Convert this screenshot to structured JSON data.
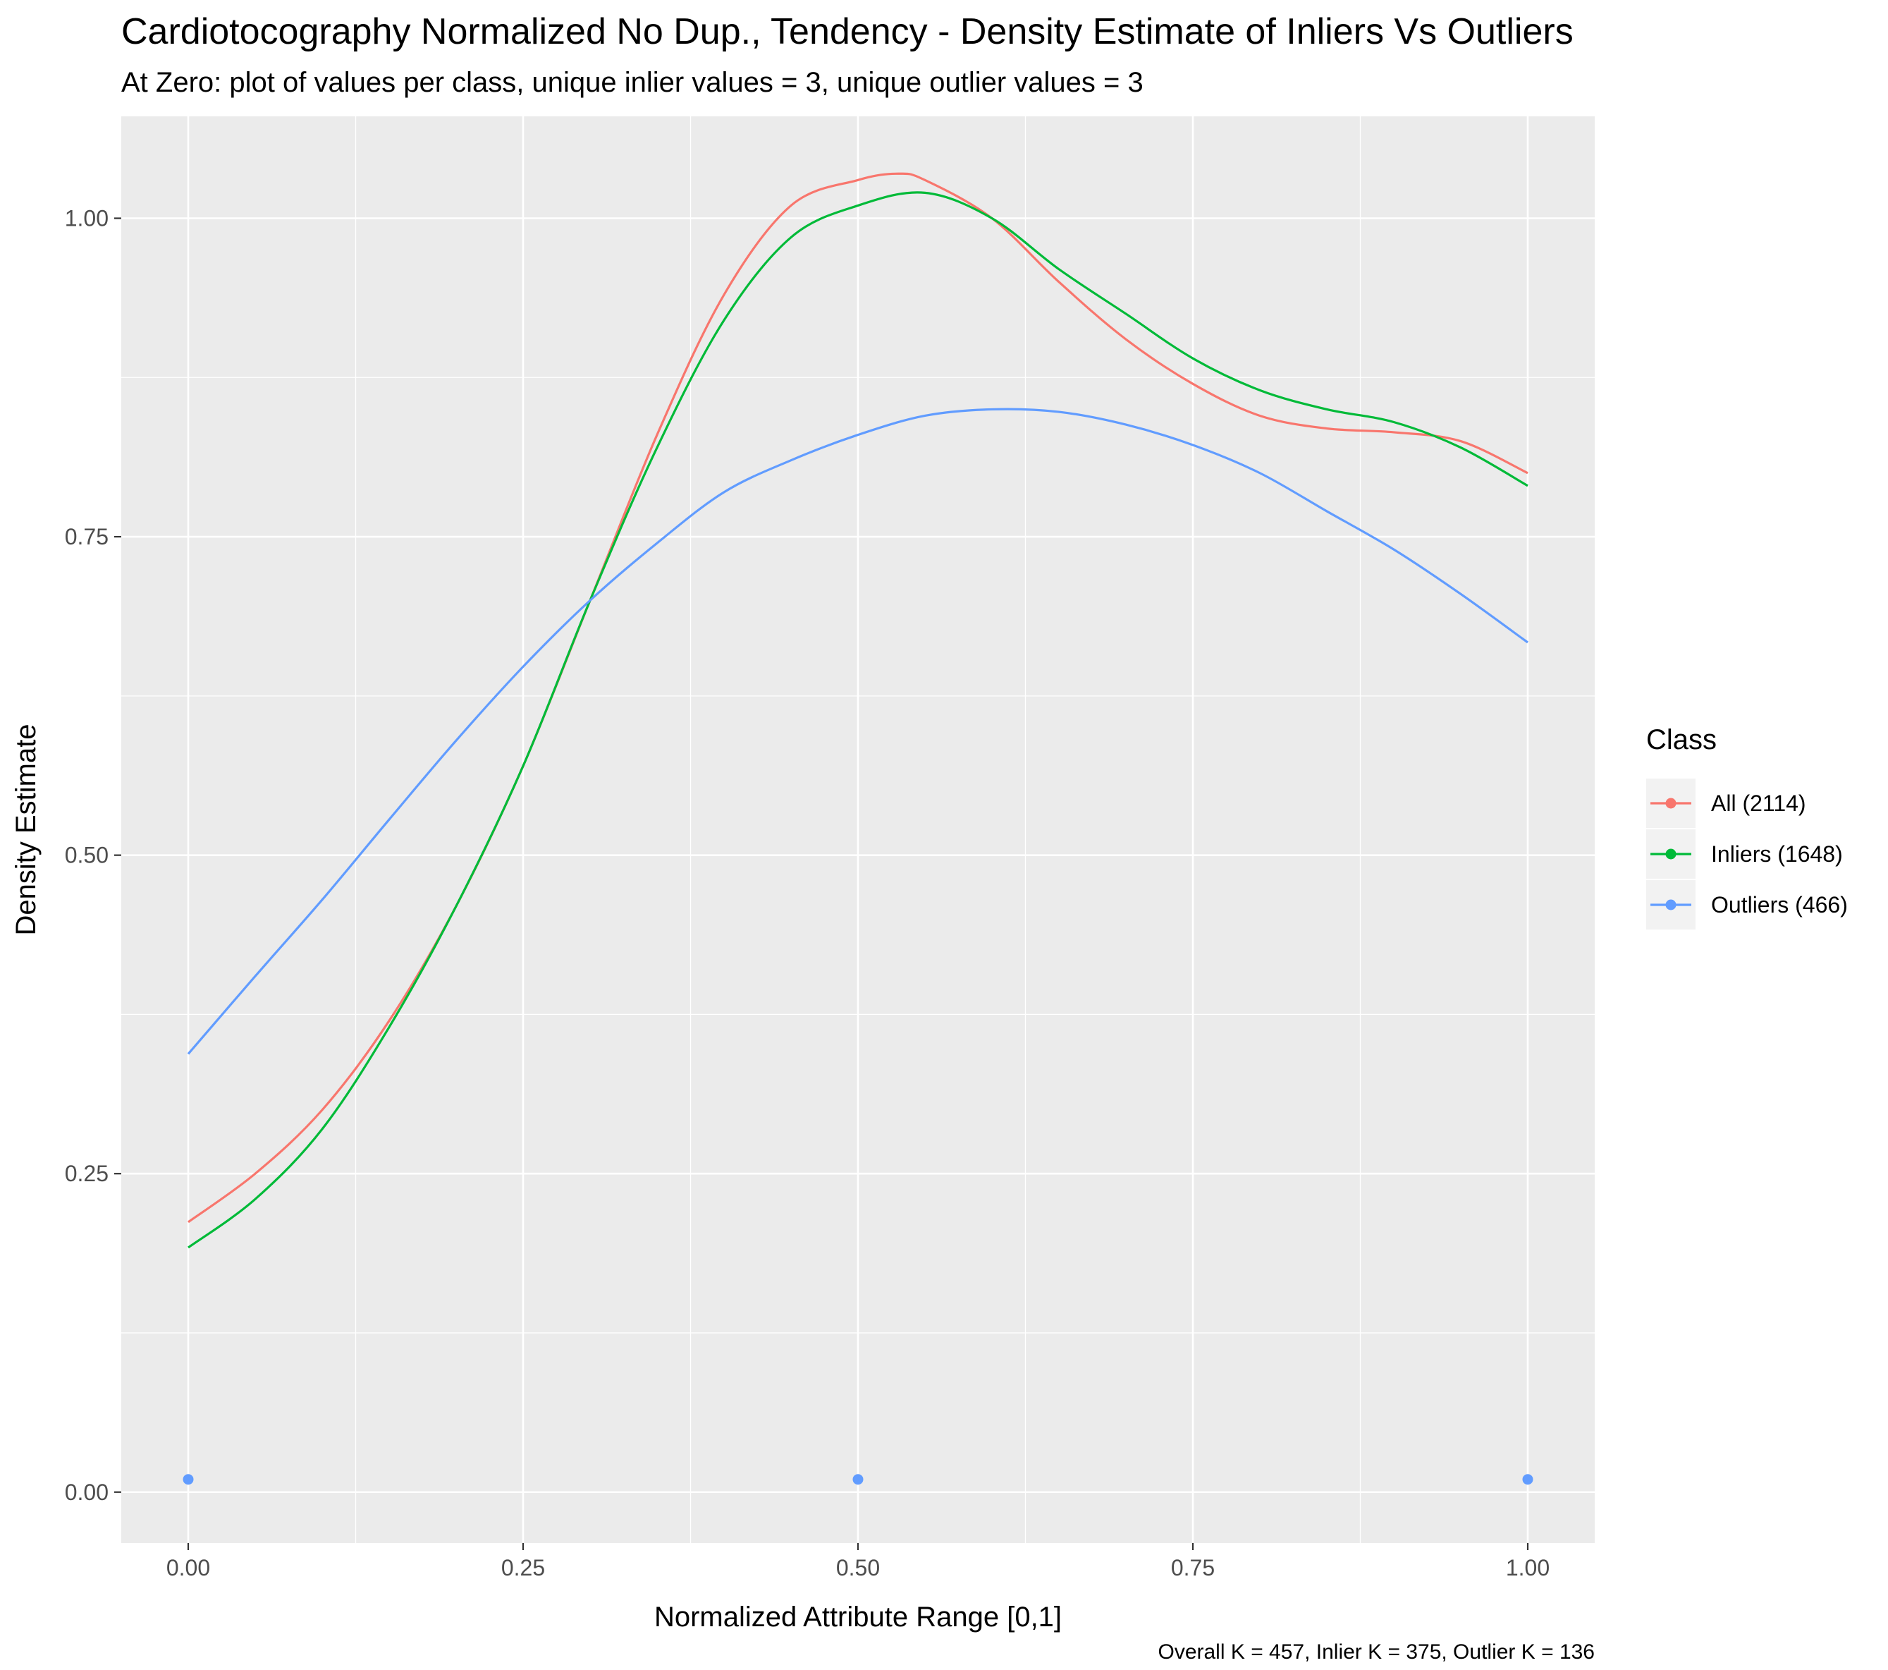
{
  "chart_data": {
    "type": "line",
    "title": "Cardiotocography Normalized No Dup., Tendency - Density Estimate of Inliers Vs Outliers",
    "subtitle": "At Zero: plot of values per class, unique inlier values = 3, unique outlier values = 3",
    "xlabel": "Normalized Attribute Range [0,1]",
    "ylabel": "Density Estimate",
    "caption": "Overall K = 457, Inlier K = 375, Outlier K = 136",
    "xlim": [
      -0.05,
      1.05
    ],
    "ylim": [
      -0.04,
      1.08
    ],
    "x_ticks": [
      0.0,
      0.25,
      0.5,
      0.75,
      1.0
    ],
    "x_tick_labels": [
      "0.00",
      "0.25",
      "0.50",
      "0.75",
      "1.00"
    ],
    "y_ticks": [
      0.0,
      0.25,
      0.5,
      0.75,
      1.0
    ],
    "y_tick_labels": [
      "0.00",
      "0.25",
      "0.50",
      "0.75",
      "1.00"
    ],
    "grid": true,
    "legend": {
      "title": "Class",
      "position": "right"
    },
    "series": [
      {
        "name": "All (2114)",
        "color": "#F8766D",
        "x": [
          0.0,
          0.05,
          0.1,
          0.15,
          0.2,
          0.25,
          0.3,
          0.35,
          0.4,
          0.45,
          0.5,
          0.53,
          0.55,
          0.6,
          0.65,
          0.7,
          0.75,
          0.8,
          0.85,
          0.9,
          0.95,
          1.0
        ],
        "y": [
          0.212,
          0.25,
          0.3,
          0.37,
          0.46,
          0.57,
          0.7,
          0.83,
          0.94,
          1.01,
          1.03,
          1.035,
          1.03,
          1.0,
          0.95,
          0.905,
          0.87,
          0.845,
          0.835,
          0.832,
          0.825,
          0.8
        ]
      },
      {
        "name": "Inliers (1648)",
        "color": "#00BA38",
        "x": [
          0.0,
          0.05,
          0.1,
          0.15,
          0.2,
          0.25,
          0.3,
          0.35,
          0.4,
          0.45,
          0.5,
          0.55,
          0.6,
          0.65,
          0.7,
          0.75,
          0.8,
          0.85,
          0.9,
          0.95,
          1.0
        ],
        "y": [
          0.192,
          0.23,
          0.285,
          0.365,
          0.46,
          0.57,
          0.7,
          0.82,
          0.92,
          0.985,
          1.01,
          1.02,
          1.0,
          0.96,
          0.925,
          0.89,
          0.865,
          0.85,
          0.84,
          0.82,
          0.79
        ]
      },
      {
        "name": "Outliers (466)",
        "color": "#619CFF",
        "x": [
          0.0,
          0.05,
          0.1,
          0.15,
          0.2,
          0.25,
          0.3,
          0.35,
          0.4,
          0.45,
          0.5,
          0.55,
          0.6,
          0.65,
          0.7,
          0.75,
          0.8,
          0.85,
          0.9,
          0.95,
          1.0
        ],
        "y": [
          0.344,
          0.405,
          0.465,
          0.528,
          0.59,
          0.648,
          0.7,
          0.745,
          0.785,
          0.81,
          0.83,
          0.845,
          0.85,
          0.848,
          0.838,
          0.822,
          0.8,
          0.77,
          0.74,
          0.705,
          0.667
        ]
      }
    ],
    "points": [
      {
        "x": 0.0,
        "y": 0.01,
        "color": "#619CFF"
      },
      {
        "x": 0.5,
        "y": 0.01,
        "color": "#619CFF"
      },
      {
        "x": 1.0,
        "y": 0.01,
        "color": "#619CFF"
      }
    ]
  }
}
